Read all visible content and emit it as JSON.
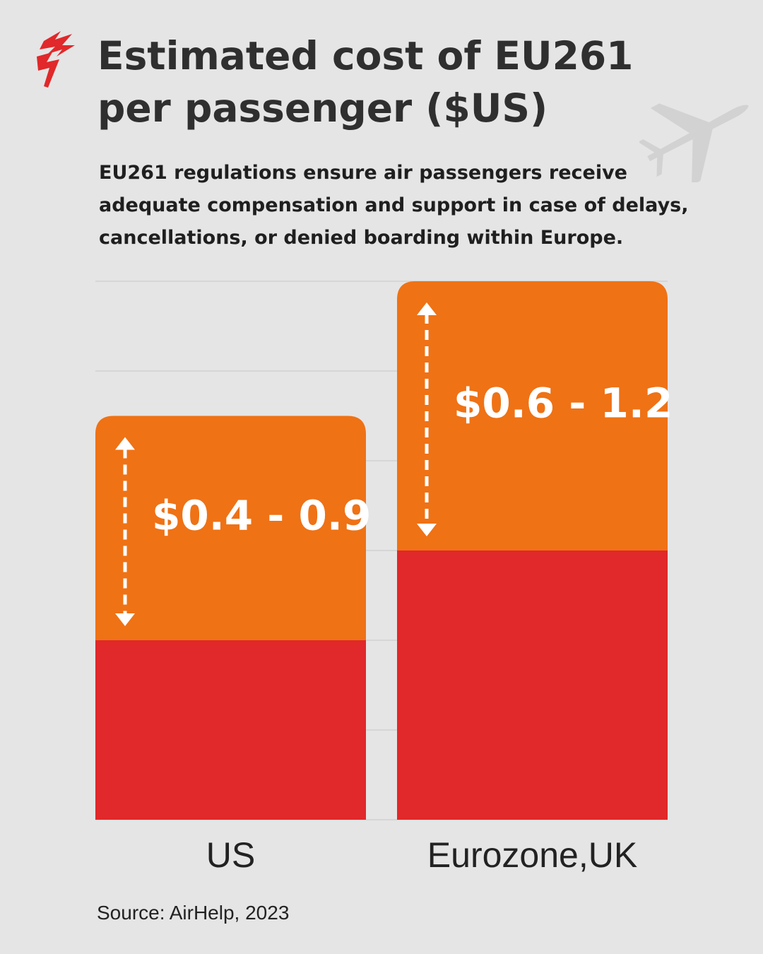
{
  "header": {
    "title": "Estimated cost of EU261 per passenger ($US)",
    "subtitle": "EU261 regulations ensure air passengers receive adequate compensation and support in case of delays, cancellations, or denied boarding within Europe."
  },
  "footer": {
    "source": "Source:  AirHelp, 2023"
  },
  "icons": {
    "logo": "sbs-logo-icon",
    "plane": "airplane-icon"
  },
  "colors": {
    "range": "#ef7215",
    "base": "#e1282a",
    "gridline": "#c8c8c8",
    "background": "#e5e5e5"
  },
  "chart_data": {
    "type": "bar",
    "stacked": true,
    "categories": [
      "US",
      "Eurozone,UK"
    ],
    "series": [
      {
        "values": [
          0.4,
          0.6
        ]
      },
      {
        "values": [
          0.5,
          0.6
        ]
      }
    ],
    "data_labels": [
      "$0.4 - 0.9",
      "$0.6 - 1.2"
    ],
    "ylim": [
      0,
      1.2
    ],
    "grid": true
  }
}
